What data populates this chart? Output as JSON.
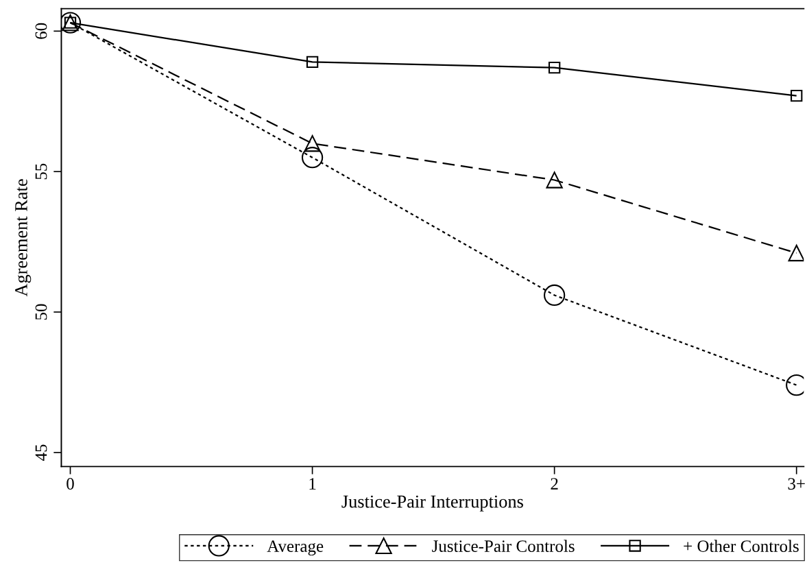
{
  "chart_data": {
    "type": "line",
    "xlabel": "Justice-Pair Interruptions",
    "ylabel": "Agreement Rate",
    "categories": [
      "0",
      "1",
      "2",
      "3+"
    ],
    "series": [
      {
        "name": "Average",
        "color": "#000000",
        "marker": "circle",
        "line_style": "dotted",
        "values": [
          60.3,
          55.5,
          50.6,
          47.4
        ]
      },
      {
        "name": "Justice-Pair Controls",
        "color": "#000000",
        "marker": "triangle",
        "line_style": "dashed",
        "values": [
          60.3,
          56.0,
          54.7,
          52.1
        ]
      },
      {
        "name": "+ Other Controls",
        "color": "#000000",
        "marker": "square",
        "line_style": "solid",
        "values": [
          60.3,
          58.9,
          58.7,
          57.7
        ]
      }
    ],
    "ylim": [
      44.5,
      60.8
    ],
    "yticks": [
      45,
      50,
      55,
      60
    ],
    "grid": false,
    "legend": "bottom"
  }
}
